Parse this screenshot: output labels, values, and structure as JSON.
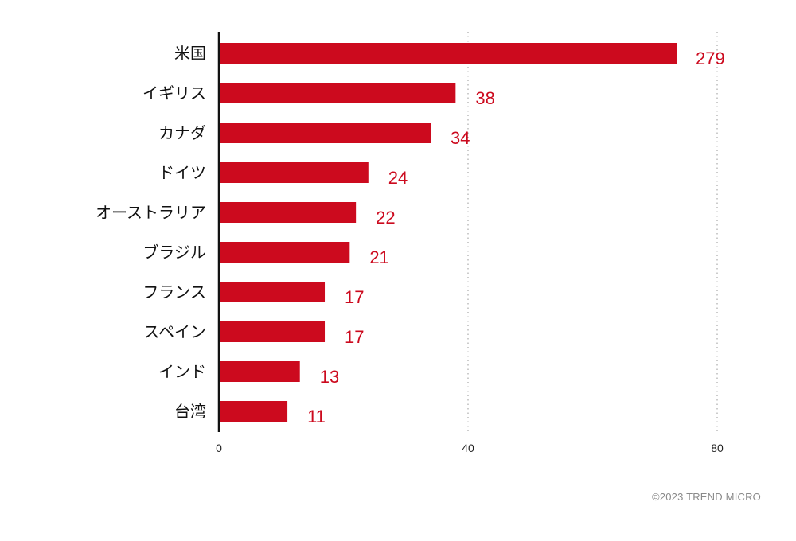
{
  "colors": {
    "bar": "#cc0a1e",
    "value_text": "#cc0a1e",
    "axis": "#111111",
    "grid": "#999999"
  },
  "chart_data": {
    "type": "bar",
    "orientation": "horizontal",
    "categories": [
      "米国",
      "イギリス",
      "カナダ",
      "ドイツ",
      "オーストラリア",
      "ブラジル",
      "フランス",
      "スペイン",
      "インド",
      "台湾"
    ],
    "values": [
      279,
      38,
      34,
      24,
      22,
      21,
      17,
      17,
      13,
      11
    ],
    "value_labels": [
      "279",
      "38",
      "34",
      "24",
      "22",
      "21",
      "17",
      "17",
      "13",
      "11"
    ],
    "xticks": [
      0,
      40,
      80
    ],
    "xtick_labels": [
      "0",
      "40",
      "80"
    ],
    "xlim": [
      0,
      80
    ],
    "axis_break": true,
    "grid": "vertical-dotted",
    "title": "",
    "xlabel": "",
    "ylabel": ""
  },
  "footer": {
    "credit": "©2023 TREND MICRO"
  }
}
